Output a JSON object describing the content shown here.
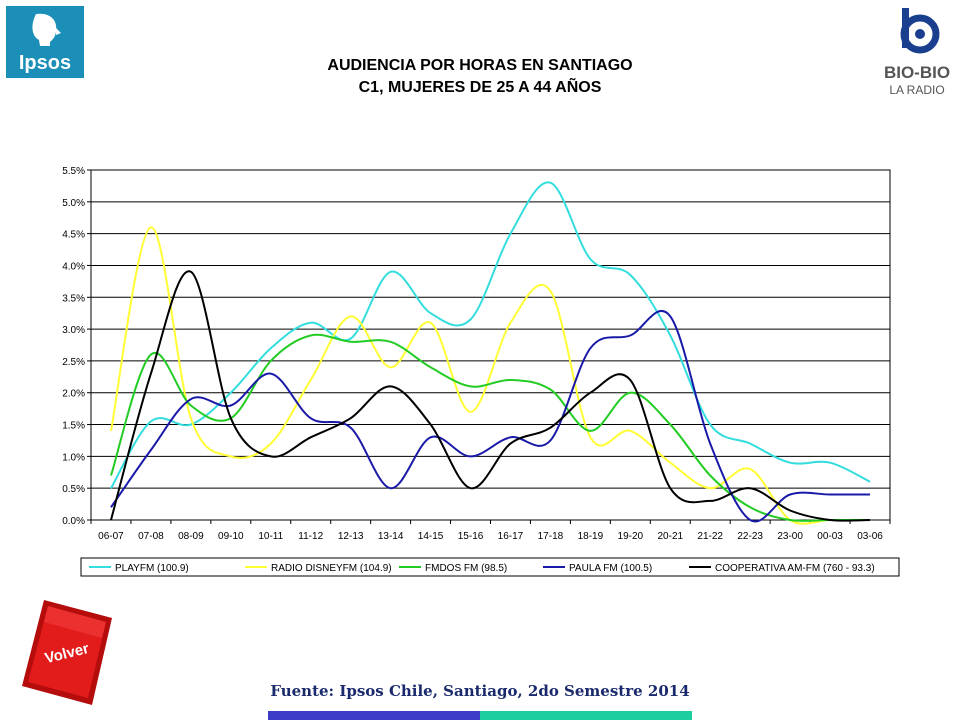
{
  "header": {
    "ipsos_logo_text": "Ipsos",
    "biobio_logo_text": "BIO-BIO",
    "biobio_logo_sub": "LA RADIO",
    "title_line1": "AUDIENCIA POR HORAS EN SANTIAGO",
    "title_line2": "C1, MUJERES DE 25 A 44 AÑOS"
  },
  "chart_data": {
    "type": "line",
    "title": "AUDIENCIA POR HORAS EN SANTIAGO C1, MUJERES DE 25 A 44 AÑOS",
    "xlabel": "",
    "ylabel": "",
    "ylim": [
      0,
      5.5
    ],
    "y_ticks": [
      "0.0%",
      "0.5%",
      "1.0%",
      "1.5%",
      "2.0%",
      "2.5%",
      "3.0%",
      "3.5%",
      "4.0%",
      "4.5%",
      "5.0%",
      "5.5%"
    ],
    "grid": true,
    "legend_position": "bottom",
    "categories": [
      "06-07",
      "07-08",
      "08-09",
      "09-10",
      "10-11",
      "11-12",
      "12-13",
      "13-14",
      "14-15",
      "15-16",
      "16-17",
      "17-18",
      "18-19",
      "19-20",
      "20-21",
      "21-22",
      "22-23",
      "23-00",
      "00-03",
      "03-06"
    ],
    "series": [
      {
        "name": "PLAYFM (100.9)",
        "color": "#33dddd",
        "values": [
          0.5,
          1.55,
          1.5,
          2.0,
          2.7,
          3.1,
          2.85,
          3.9,
          3.25,
          3.15,
          4.5,
          5.3,
          4.1,
          3.85,
          2.9,
          1.5,
          1.2,
          0.9,
          0.9,
          0.6
        ]
      },
      {
        "name": "RADIO DISNEYFM (104.9)",
        "color": "#ffff33",
        "values": [
          1.4,
          4.6,
          1.6,
          1.0,
          1.2,
          2.2,
          3.2,
          2.4,
          3.1,
          1.7,
          3.1,
          3.6,
          1.3,
          1.4,
          0.9,
          0.5,
          0.8,
          0.0,
          0.0,
          0.0
        ]
      },
      {
        "name": "FMDOS FM (98.5)",
        "color": "#22cc22",
        "values": [
          0.7,
          2.6,
          1.8,
          1.6,
          2.5,
          2.9,
          2.8,
          2.8,
          2.4,
          2.1,
          2.2,
          2.05,
          1.4,
          2.0,
          1.5,
          0.7,
          0.2,
          0.0,
          0.0,
          0.0
        ]
      },
      {
        "name": "PAULA FM (100.5)",
        "color": "#1a1aa8",
        "values": [
          0.2,
          1.1,
          1.9,
          1.8,
          2.3,
          1.6,
          1.45,
          0.5,
          1.3,
          1.0,
          1.3,
          1.25,
          2.7,
          2.9,
          3.2,
          1.2,
          0.0,
          0.4,
          0.4,
          0.4
        ]
      },
      {
        "name": "COOPERATIVA AM-FM (760 - 93.3)",
        "color": "#000000",
        "values": [
          0.0,
          2.3,
          3.9,
          1.6,
          1.0,
          1.3,
          1.6,
          2.1,
          1.5,
          0.5,
          1.2,
          1.45,
          2.0,
          2.2,
          0.5,
          0.3,
          0.5,
          0.15,
          0.0,
          0.0
        ]
      }
    ]
  },
  "footer": {
    "volver_label": "Volver",
    "source": "Fuente: Ipsos Chile, Santiago, 2do Semestre 2014"
  }
}
